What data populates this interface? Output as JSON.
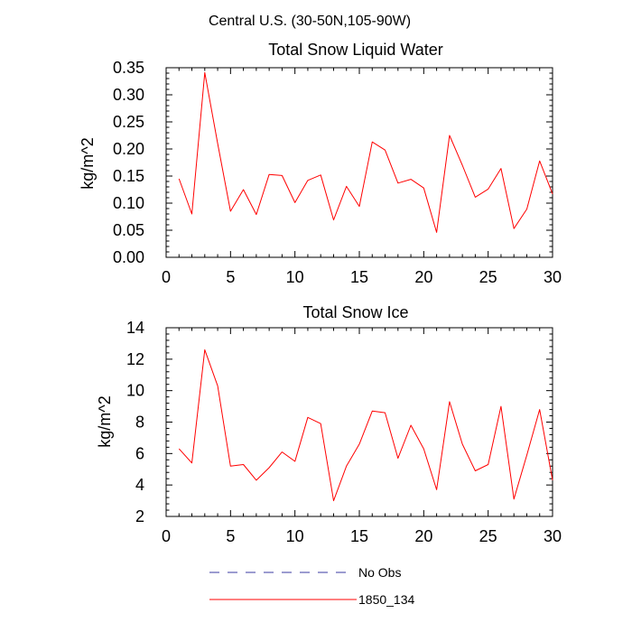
{
  "figure": {
    "title": "Central U.S. (30-50N,105-90W)"
  },
  "chart_data": [
    {
      "type": "line",
      "title": "Total Snow Liquid Water",
      "xlabel": "",
      "ylabel": "kg/m^2",
      "xlim": [
        0,
        30
      ],
      "ylim": [
        0,
        0.35
      ],
      "x_ticks": [
        "0",
        "5",
        "10",
        "15",
        "20",
        "25",
        "30"
      ],
      "y_ticks": [
        "0.00",
        "0.05",
        "0.10",
        "0.15",
        "0.20",
        "0.25",
        "0.30",
        "0.35"
      ],
      "x": [
        1,
        2,
        3,
        4,
        5,
        6,
        7,
        8,
        9,
        10,
        11,
        12,
        13,
        14,
        15,
        16,
        17,
        18,
        19,
        20,
        21,
        22,
        23,
        24,
        25,
        26,
        27,
        28,
        29,
        30
      ],
      "series": [
        {
          "name": "1850_134",
          "color": "#ff0000",
          "values": [
            0.145,
            0.08,
            0.341,
            0.21,
            0.085,
            0.125,
            0.079,
            0.153,
            0.151,
            0.101,
            0.142,
            0.152,
            0.069,
            0.131,
            0.094,
            0.213,
            0.198,
            0.137,
            0.144,
            0.128,
            0.046,
            0.225,
            0.17,
            0.111,
            0.126,
            0.164,
            0.053,
            0.089,
            0.178,
            0.117
          ]
        }
      ]
    },
    {
      "type": "line",
      "title": "Total Snow Ice",
      "xlabel": "",
      "ylabel": "kg/m^2",
      "xlim": [
        0,
        30
      ],
      "ylim": [
        2,
        14
      ],
      "x_ticks": [
        "0",
        "5",
        "10",
        "15",
        "20",
        "25",
        "30"
      ],
      "y_ticks": [
        "2",
        "4",
        "6",
        "8",
        "10",
        "12",
        "14"
      ],
      "x": [
        1,
        2,
        3,
        4,
        5,
        6,
        7,
        8,
        9,
        10,
        11,
        12,
        13,
        14,
        15,
        16,
        17,
        18,
        19,
        20,
        21,
        22,
        23,
        24,
        25,
        26,
        27,
        28,
        29,
        30
      ],
      "series": [
        {
          "name": "1850_134",
          "color": "#ff0000",
          "values": [
            6.3,
            5.4,
            12.6,
            10.3,
            5.2,
            5.3,
            4.3,
            5.1,
            6.1,
            5.5,
            8.3,
            7.9,
            3.0,
            5.2,
            6.6,
            8.7,
            8.6,
            5.7,
            7.8,
            6.3,
            3.7,
            9.3,
            6.6,
            4.9,
            5.3,
            9.0,
            3.1,
            5.9,
            8.8,
            4.3
          ]
        }
      ]
    }
  ],
  "legend": {
    "items": [
      {
        "label": "No Obs",
        "style": "dashed",
        "color": "#3a3aa0"
      },
      {
        "label": "1850_134",
        "style": "solid",
        "color": "#ff0000"
      }
    ]
  }
}
